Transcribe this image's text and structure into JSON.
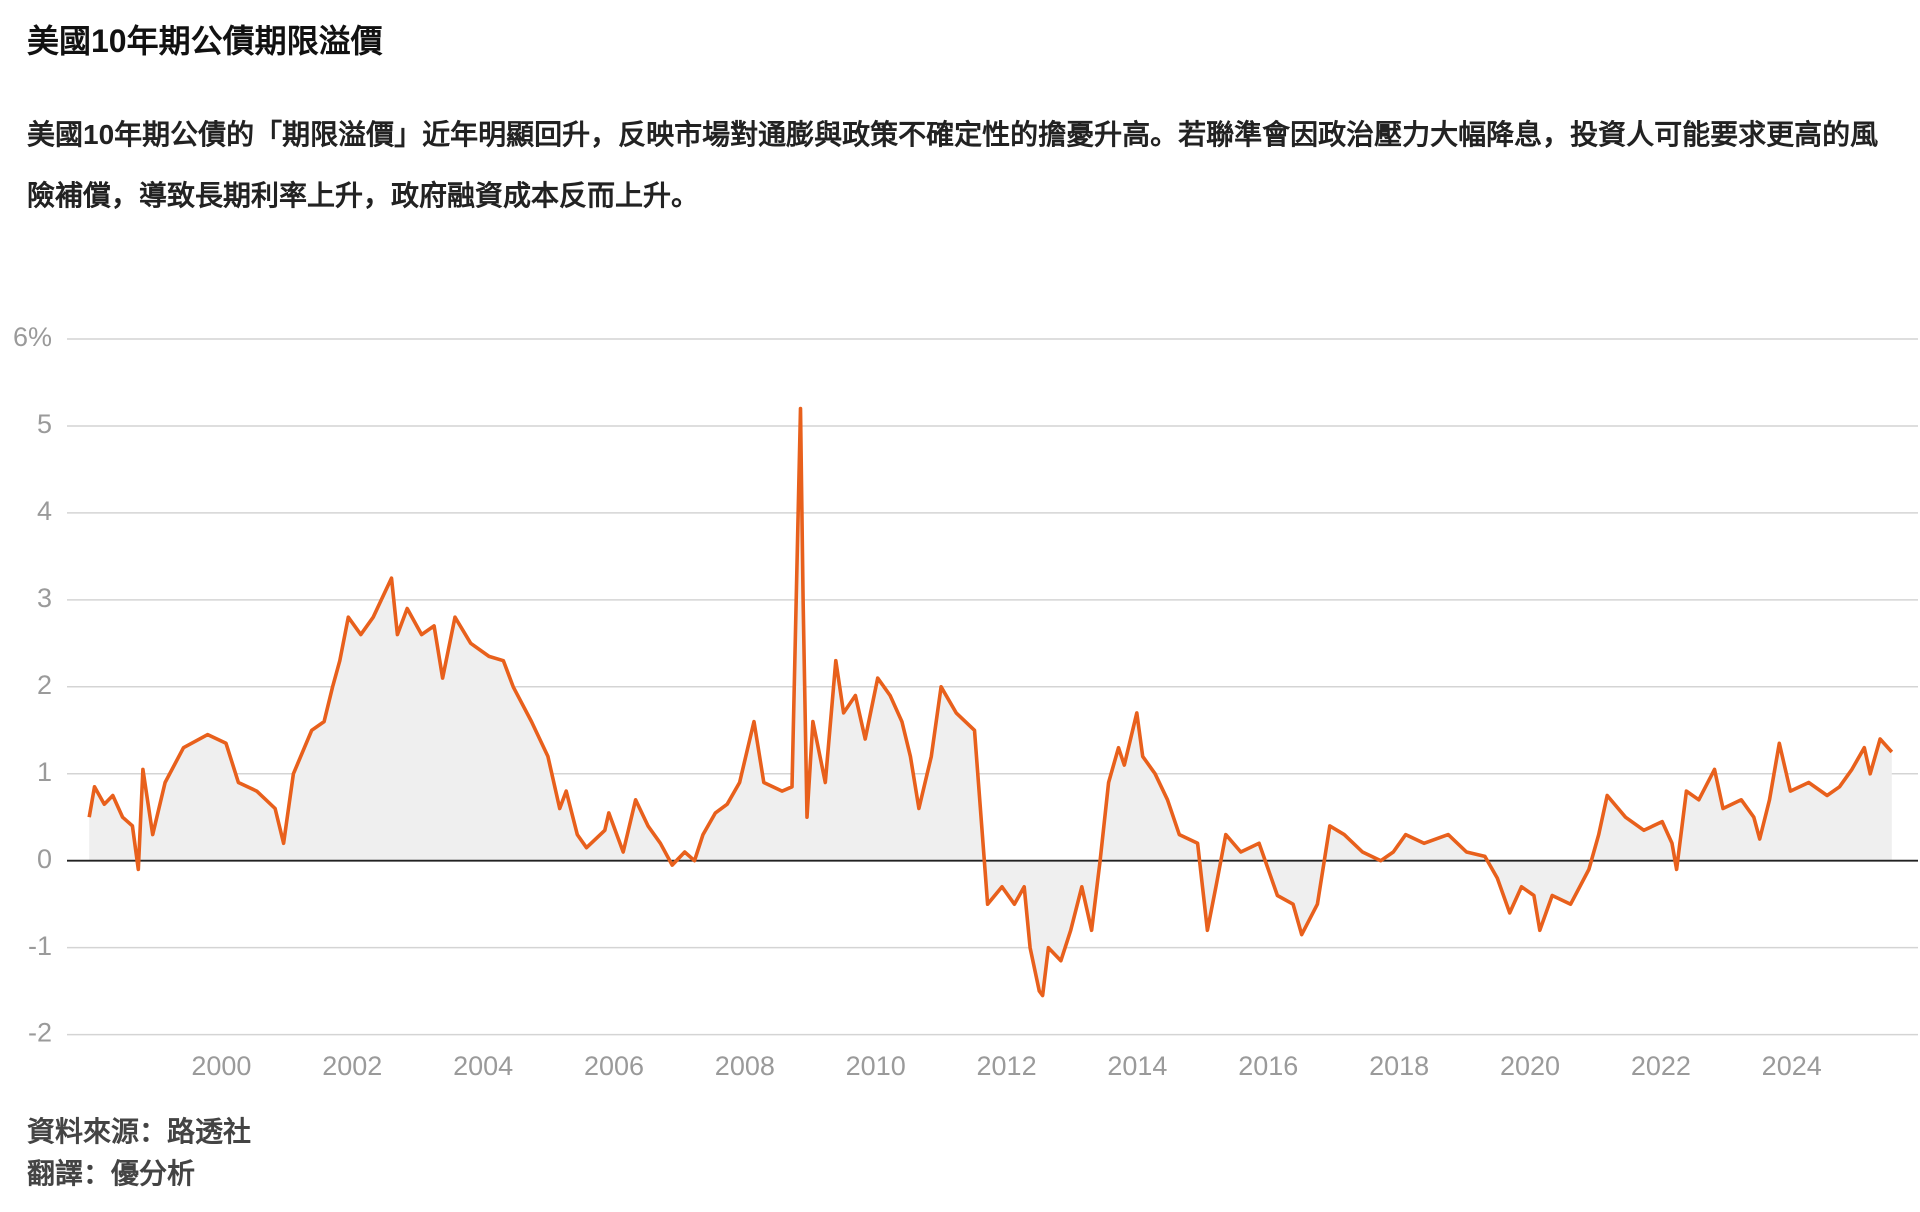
{
  "chart_data": {
    "type": "area-line",
    "title": "美國10年期公債期限溢價",
    "subtitle": "美國10年期公債的「期限溢價」近年明顯回升，反映市場對通膨與政策不確定性的擔憂升高。若聯準會因政治壓力大幅降息，投資人可能要求更高的風險補償，導致長期利率上升，政府融資成本反而上升。",
    "source": "資料來源：路透社",
    "credit": "翻譯：優分析",
    "color": "#e8601c",
    "area_color": "#efefef",
    "grid": true,
    "xlim": [
      1997.64,
      2025.93
    ],
    "ylim": [
      -2.2,
      6
    ],
    "xticks": [
      2000,
      2002,
      2004,
      2006,
      2008,
      2010,
      2012,
      2014,
      2016,
      2018,
      2020,
      2022,
      2024
    ],
    "yticks": [
      {
        "value": 6,
        "label": "6%"
      },
      5,
      4,
      3,
      2,
      1,
      0,
      -1,
      -2
    ],
    "x": [
      1997.98,
      1998.06,
      1998.21,
      1998.34,
      1998.49,
      1998.64,
      1998.73,
      1998.8,
      1998.95,
      1999.14,
      1999.42,
      1999.79,
      2000.07,
      2000.26,
      2000.54,
      2000.82,
      2000.95,
      2001.1,
      2001.38,
      2001.57,
      2001.7,
      2001.81,
      2001.94,
      2002.13,
      2002.32,
      2002.6,
      2002.69,
      2002.84,
      2003.06,
      2003.25,
      2003.38,
      2003.57,
      2003.81,
      2004.09,
      2004.31,
      2004.46,
      2004.74,
      2004.99,
      2005.17,
      2005.27,
      2005.44,
      2005.58,
      2005.86,
      2005.92,
      2006.14,
      2006.33,
      2006.52,
      2006.71,
      2006.89,
      2007.08,
      2007.23,
      2007.36,
      2007.55,
      2007.73,
      2007.92,
      2008.14,
      2008.29,
      2008.57,
      2008.72,
      2008.85,
      2008.89,
      2008.95,
      2009.04,
      2009.23,
      2009.39,
      2009.51,
      2009.69,
      2009.84,
      2010.03,
      2010.22,
      2010.4,
      2010.53,
      2010.66,
      2010.85,
      2011.0,
      2011.23,
      2011.51,
      2011.62,
      2011.71,
      2011.93,
      2012.12,
      2012.27,
      2012.36,
      2012.5,
      2012.55,
      2012.64,
      2012.83,
      2012.98,
      2013.15,
      2013.3,
      2013.43,
      2013.56,
      2013.71,
      2013.8,
      2013.99,
      2014.08,
      2014.27,
      2014.46,
      2014.64,
      2014.92,
      2015.07,
      2015.2,
      2015.35,
      2015.58,
      2015.86,
      2016.14,
      2016.38,
      2016.51,
      2016.75,
      2016.94,
      2017.16,
      2017.44,
      2017.72,
      2017.91,
      2018.1,
      2018.38,
      2018.75,
      2019.03,
      2019.31,
      2019.5,
      2019.69,
      2019.87,
      2020.06,
      2020.15,
      2020.34,
      2020.62,
      2020.9,
      2021.05,
      2021.18,
      2021.46,
      2021.74,
      2022.02,
      2022.17,
      2022.24,
      2022.39,
      2022.58,
      2022.82,
      2022.95,
      2023.23,
      2023.42,
      2023.51,
      2023.66,
      2023.81,
      2023.98,
      2024.26,
      2024.54,
      2024.73,
      2024.92,
      2025.11,
      2025.2,
      2025.35,
      2025.53
    ],
    "values": [
      0.5,
      0.85,
      0.65,
      0.75,
      0.5,
      0.4,
      -0.1,
      1.05,
      0.3,
      0.9,
      1.3,
      1.45,
      1.35,
      0.9,
      0.8,
      0.6,
      0.2,
      1.0,
      1.5,
      1.6,
      2.0,
      2.3,
      2.8,
      2.6,
      2.8,
      3.25,
      2.6,
      2.9,
      2.6,
      2.7,
      2.1,
      2.8,
      2.5,
      2.35,
      2.3,
      2.0,
      1.6,
      1.2,
      0.6,
      0.8,
      0.3,
      0.15,
      0.35,
      0.55,
      0.1,
      0.7,
      0.4,
      0.2,
      -0.05,
      0.1,
      0.0,
      0.3,
      0.55,
      0.65,
      0.9,
      1.6,
      0.9,
      0.8,
      0.85,
      5.2,
      3.0,
      0.5,
      1.6,
      0.9,
      2.3,
      1.7,
      1.9,
      1.4,
      2.1,
      1.9,
      1.6,
      1.2,
      0.6,
      1.2,
      2.0,
      1.7,
      1.5,
      0.4,
      -0.5,
      -0.3,
      -0.5,
      -0.3,
      -1.0,
      -1.5,
      -1.55,
      -1.0,
      -1.15,
      -0.8,
      -0.3,
      -0.8,
      0.0,
      0.9,
      1.3,
      1.1,
      1.7,
      1.2,
      1.0,
      0.7,
      0.3,
      0.2,
      -0.8,
      -0.3,
      0.3,
      0.1,
      0.2,
      -0.4,
      -0.5,
      -0.85,
      -0.5,
      0.4,
      0.3,
      0.1,
      0.0,
      0.1,
      0.3,
      0.2,
      0.3,
      0.1,
      0.05,
      -0.2,
      -0.6,
      -0.3,
      -0.4,
      -0.8,
      -0.4,
      -0.5,
      -0.1,
      0.3,
      0.75,
      0.5,
      0.35,
      0.45,
      0.2,
      -0.1,
      0.8,
      0.7,
      1.05,
      0.6,
      0.7,
      0.5,
      0.25,
      0.7,
      1.35,
      0.8,
      0.9,
      0.75,
      0.85,
      1.05,
      1.3,
      1.0,
      1.4,
      1.25
    ]
  }
}
